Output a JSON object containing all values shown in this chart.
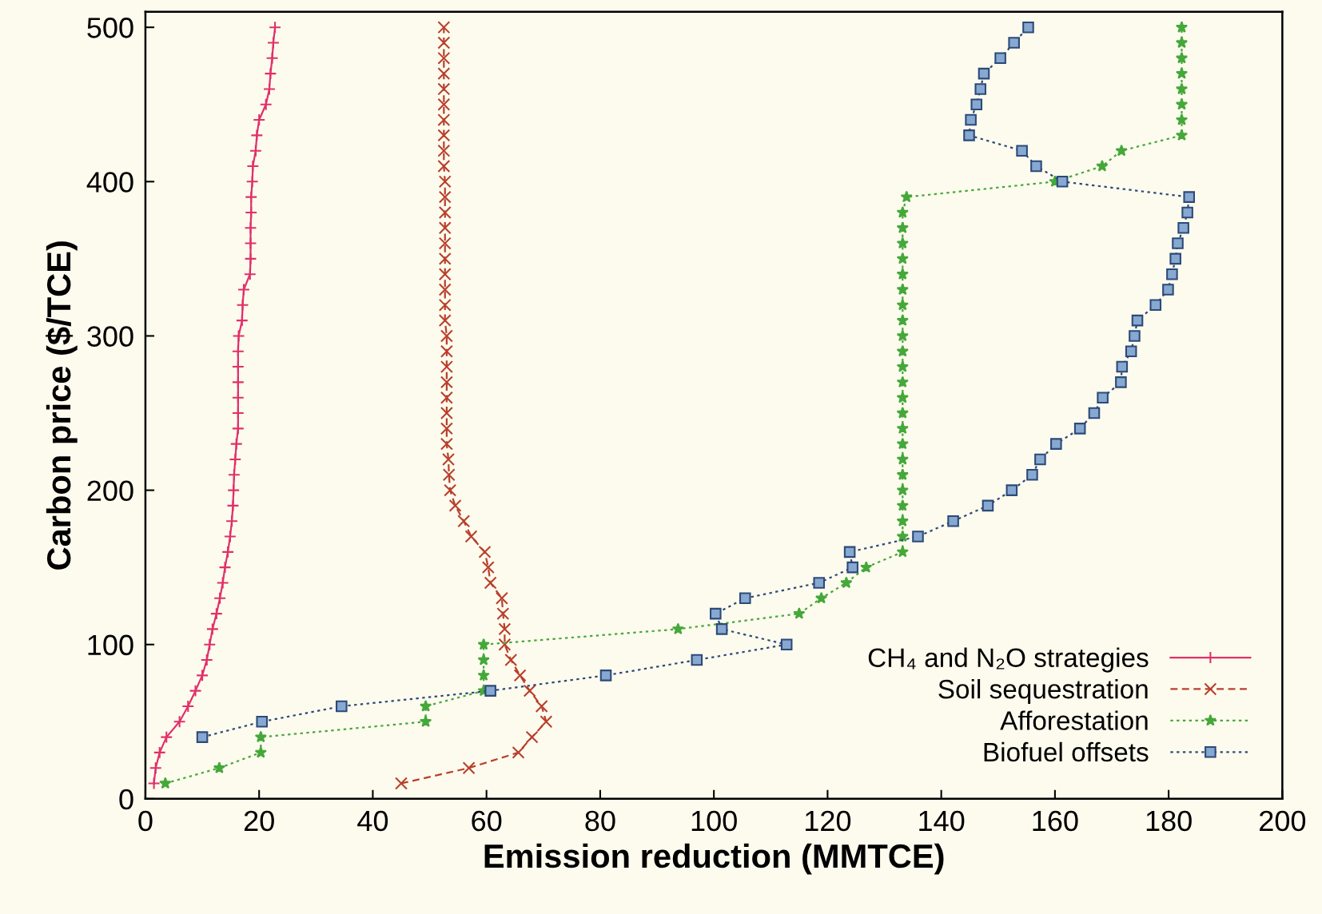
{
  "chart_data": {
    "type": "line",
    "xlabel": "Emission reduction (MMTCE)",
    "ylabel": "Carbon price ($/TCE)",
    "xlim": [
      0,
      200
    ],
    "xticks": [
      0,
      20,
      40,
      60,
      80,
      100,
      120,
      140,
      160,
      180,
      200
    ],
    "ylim": [
      0,
      510
    ],
    "yticks": [
      0,
      100,
      200,
      300,
      400,
      500
    ],
    "grid": false,
    "legend": "bottom right",
    "series": [
      {
        "name": "CH₄ and N₂O strategies",
        "color": "#e0306a",
        "marker": "plus",
        "line_style": "solid",
        "x": [
          1.5,
          1.8,
          2.5,
          3.7,
          6,
          7.5,
          8.8,
          10,
          10.8,
          11.3,
          11.8,
          12.5,
          13.1,
          13.6,
          14,
          14.5,
          14.9,
          15.2,
          15.4,
          15.5,
          15.6,
          15.8,
          16,
          16.3,
          16.3,
          16.3,
          16.3,
          16.3,
          16.3,
          16.4,
          17,
          17.1,
          17.3,
          18.4,
          18.5,
          18.5,
          18.5,
          18.6,
          18.6,
          18.8,
          18.9,
          19.4,
          19.6,
          20,
          21.2,
          21.8,
          22,
          22.3,
          22.5,
          22.8
        ],
        "values": [
          10,
          20,
          30,
          40,
          50,
          60,
          70,
          80,
          90,
          100,
          110,
          120,
          130,
          140,
          150,
          160,
          170,
          180,
          190,
          200,
          210,
          220,
          230,
          240,
          250,
          260,
          270,
          280,
          290,
          300,
          310,
          320,
          330,
          340,
          350,
          360,
          370,
          380,
          390,
          400,
          410,
          420,
          430,
          440,
          450,
          460,
          470,
          480,
          490,
          500
        ]
      },
      {
        "name": "Soil sequestration",
        "color": "#b8402c",
        "marker": "cross",
        "line_style": "dashed",
        "x": [
          45,
          56.9,
          65.6,
          68,
          70.5,
          69.7,
          67.6,
          65.9,
          64.3,
          63.2,
          63.2,
          62.9,
          62.7,
          60.7,
          60.3,
          59.7,
          57.3,
          56,
          54.5,
          53.6,
          53.4,
          53.3,
          53,
          53,
          53,
          53,
          53,
          53,
          53,
          53,
          52.7,
          52.7,
          52.7,
          52.7,
          52.7,
          52.7,
          52.7,
          52.7,
          52.7,
          52.7,
          52.5,
          52.5,
          52.5,
          52.5,
          52.5,
          52.5,
          52.5,
          52.5,
          52.5,
          52.5
        ],
        "values": [
          10,
          20,
          30,
          40,
          50,
          60,
          70,
          80,
          90,
          100,
          110,
          120,
          130,
          140,
          150,
          160,
          170,
          180,
          190,
          200,
          210,
          220,
          230,
          240,
          250,
          260,
          270,
          280,
          290,
          300,
          310,
          320,
          330,
          340,
          350,
          360,
          370,
          380,
          390,
          400,
          410,
          420,
          430,
          440,
          450,
          460,
          470,
          480,
          490,
          500
        ]
      },
      {
        "name": "Afforestation",
        "color": "#45a83a",
        "marker": "star",
        "line_style": "dotted",
        "x": [
          3.5,
          13,
          20.3,
          20.3,
          49.3,
          49.3,
          59.5,
          59.5,
          59.5,
          59.5,
          93.7,
          115,
          118.9,
          123.3,
          126.8,
          133.2,
          133.2,
          133.2,
          133.2,
          133.2,
          133.2,
          133.2,
          133.2,
          133.2,
          133.2,
          133.2,
          133.2,
          133.2,
          133.2,
          133.2,
          133.2,
          133.2,
          133.2,
          133.2,
          133.2,
          133.2,
          133.2,
          133.2,
          133.9,
          160,
          168.3,
          171.7,
          182.3,
          182.3,
          182.3,
          182.3,
          182.3,
          182.3,
          182.3,
          182.3
        ],
        "values": [
          10,
          20,
          30,
          40,
          50,
          60,
          70,
          80,
          90,
          100,
          110,
          120,
          130,
          140,
          150,
          160,
          170,
          180,
          190,
          200,
          210,
          220,
          230,
          240,
          250,
          260,
          270,
          280,
          290,
          300,
          310,
          320,
          330,
          340,
          350,
          360,
          370,
          380,
          390,
          400,
          410,
          420,
          430,
          440,
          450,
          460,
          470,
          480,
          490,
          500
        ]
      },
      {
        "name": "Biofuel offsets",
        "color": "#2c4a78",
        "marker": "square",
        "line_style": "dotted",
        "x": [
          10,
          20.5,
          34.5,
          60.7,
          81,
          97,
          112.8,
          101.4,
          100.3,
          105.5,
          118.5,
          124.4,
          123.9,
          135.9,
          142.1,
          148.2,
          152.4,
          156,
          157.4,
          160.2,
          164.4,
          166.9,
          168.4,
          171.6,
          171.8,
          173.4,
          174,
          174.5,
          177.7,
          179.9,
          180.6,
          181.2,
          181.6,
          182.6,
          183.3,
          183.6,
          161.3,
          156.7,
          154.2,
          144.9,
          145.2,
          146.2,
          146.9,
          147.5,
          150.4,
          152.8,
          155.3
        ],
        "values": [
          40,
          50,
          60,
          70,
          80,
          90,
          100,
          110,
          120,
          130,
          140,
          150,
          160,
          170,
          180,
          190,
          200,
          210,
          220,
          230,
          240,
          250,
          260,
          270,
          280,
          290,
          300,
          310,
          320,
          330,
          340,
          350,
          360,
          370,
          380,
          390,
          400,
          410,
          420,
          430,
          440,
          450,
          460,
          470,
          480,
          490,
          500
        ]
      }
    ]
  }
}
